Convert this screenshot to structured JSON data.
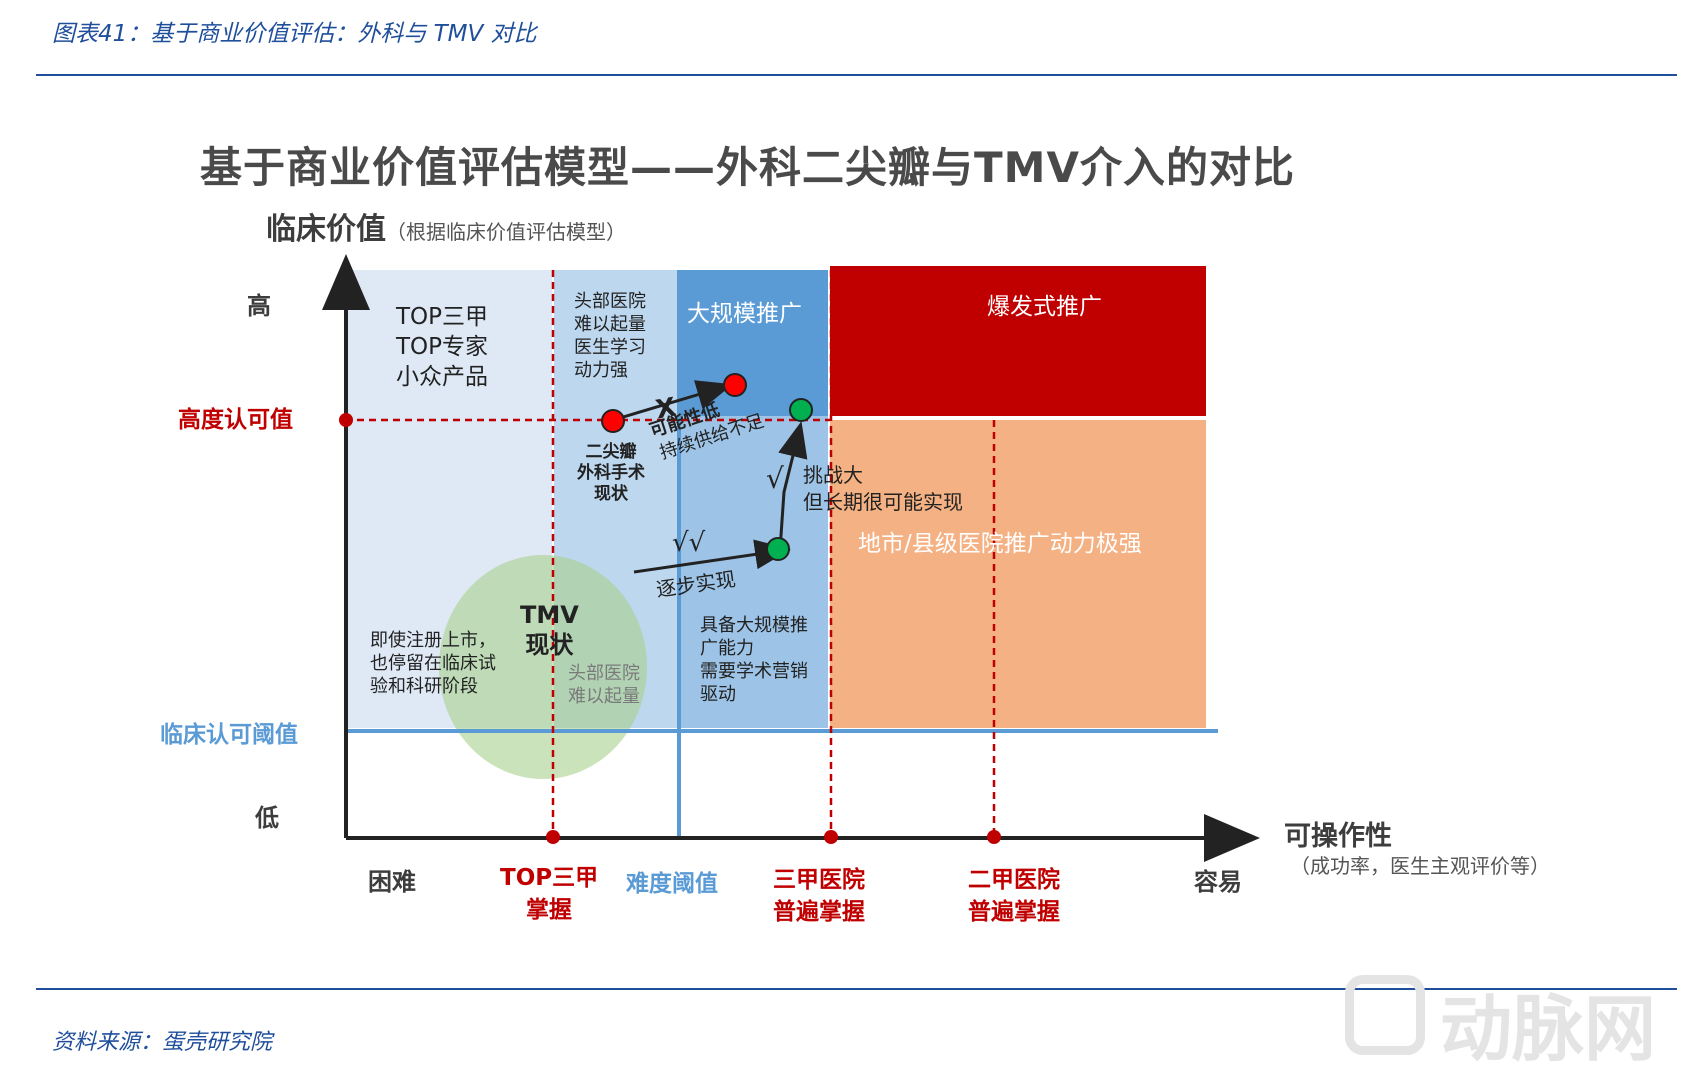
{
  "caption": "图表41：基于商业价值评估：外科与 TMV 对比",
  "source": "资料来源：蛋壳研究院",
  "title": "基于商业价值评估模型——外科二尖瓣与TMV介入的对比",
  "y_axis": {
    "title": "临床价值",
    "subtitle": "（根据临床价值评估模型）",
    "high": "高",
    "low": "低",
    "recognized_value": "高度认可值",
    "threshold": "临床认可阈值"
  },
  "x_axis": {
    "title": "可操作性",
    "subtitle": "（成功率，医生主观评价等）",
    "hard": "困难",
    "easy": "容易",
    "marker1": [
      "TOP三甲",
      "掌握"
    ],
    "threshold": "难度阈值",
    "marker2": [
      "三甲医院",
      "普遍掌握"
    ],
    "marker3": [
      "二甲医院",
      "普遍掌握"
    ]
  },
  "regions": {
    "top_tier": [
      "TOP三甲",
      "TOP专家",
      "小众产品"
    ],
    "head_hosp_top": [
      "头部医院",
      "难以起量",
      "医生学习",
      "动力强"
    ],
    "large_scale": "大规模推广",
    "explosive": "爆发式推广",
    "county_hosp": "地市/县级医院推广动力极强",
    "still_trial": [
      "即使注册上市，",
      "也停留在临床试",
      "验和科研阶段"
    ],
    "head_hosp_bottom": [
      "头部医院",
      "难以起量"
    ],
    "capability": [
      "具备大规模推",
      "广能力",
      "需要学术营销",
      "驱动"
    ]
  },
  "annotations": {
    "surgery_status": [
      "二尖瓣",
      "外科手术",
      "现状"
    ],
    "low_possibility": "可能性低",
    "insufficient_supply": "持续供给不足",
    "x_mark": "X",
    "challenge": [
      "挑战大",
      "但长期很可能实现"
    ],
    "tmv_status": [
      "TMV",
      "现状"
    ],
    "gradual": "逐步实现",
    "check_single": "√",
    "check_double": "√√"
  },
  "colors": {
    "light_blue": "#dfe9f5",
    "mid_blue": "#bdd7ee",
    "blue": "#5b9bd5",
    "light_blue2": "#9dc3e6",
    "red": "#c00000",
    "orange": "#f4b183",
    "green_ellipse": "#a9d18e",
    "marker_red": "#ff0000",
    "marker_green": "#00b050"
  },
  "watermark": "动脉网"
}
